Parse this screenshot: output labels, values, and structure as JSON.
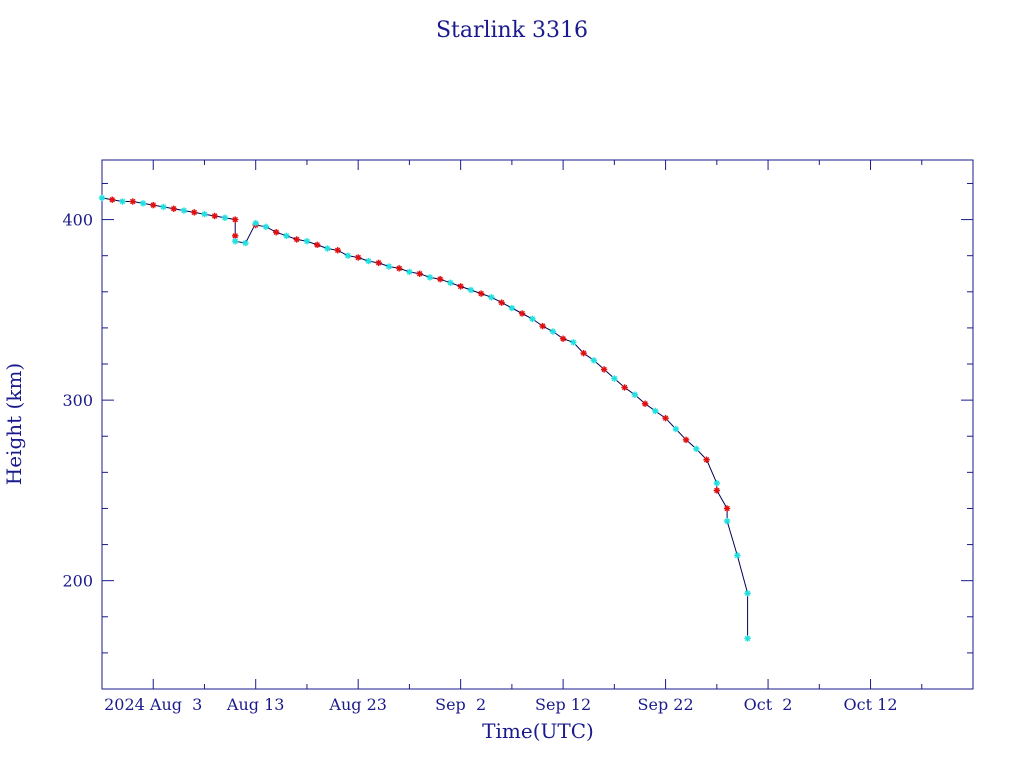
{
  "chart_data": {
    "type": "scatter",
    "title": "Starlink 3316",
    "xlabel": "Time(UTC)",
    "ylabel": "Height (km)",
    "x_tick_labels": [
      "2024 Aug  3",
      "Aug 13",
      "Aug 23",
      "Sep  2",
      "Sep 12",
      "Sep 22",
      "Oct  2",
      "Oct 12"
    ],
    "y_ticks": [
      200,
      300,
      400
    ],
    "xlim": [
      "2024-07-29",
      "2024-10-22"
    ],
    "ylim": [
      140,
      433
    ],
    "grid": false,
    "colors": {
      "axis": "#1a1a8c",
      "line": "#000055",
      "marker_a": "#e01010",
      "marker_b": "#20e0e0"
    },
    "series": [
      {
        "marker": "red-asterisk",
        "x": [
          "2024-07-30",
          "2024-08-01",
          "2024-08-03",
          "2024-08-05",
          "2024-08-07",
          "2024-08-09",
          "2024-08-11",
          "2024-08-11",
          "2024-08-13",
          "2024-08-15",
          "2024-08-17",
          "2024-08-19",
          "2024-08-21",
          "2024-08-23",
          "2024-08-25",
          "2024-08-27",
          "2024-08-29",
          "2024-08-31",
          "2024-09-02",
          "2024-09-04",
          "2024-09-06",
          "2024-09-08",
          "2024-09-10",
          "2024-09-12",
          "2024-09-14",
          "2024-09-16",
          "2024-09-18",
          "2024-09-20",
          "2024-09-22",
          "2024-09-24",
          "2024-09-26",
          "2024-09-27",
          "2024-09-28"
        ],
        "y": [
          411,
          410,
          408,
          406,
          404,
          402,
          400,
          391,
          397,
          393,
          389,
          386,
          383,
          379,
          376,
          373,
          370,
          367,
          363,
          359,
          354,
          348,
          341,
          334,
          326,
          317,
          307,
          298,
          290,
          278,
          267,
          250,
          240
        ]
      },
      {
        "marker": "cyan-asterisk",
        "x": [
          "2024-07-29",
          "2024-07-31",
          "2024-08-02",
          "2024-08-04",
          "2024-08-06",
          "2024-08-08",
          "2024-08-10",
          "2024-08-11",
          "2024-08-12",
          "2024-08-13",
          "2024-08-14",
          "2024-08-16",
          "2024-08-18",
          "2024-08-20",
          "2024-08-22",
          "2024-08-24",
          "2024-08-26",
          "2024-08-28",
          "2024-08-30",
          "2024-09-01",
          "2024-09-03",
          "2024-09-05",
          "2024-09-07",
          "2024-09-09",
          "2024-09-11",
          "2024-09-13",
          "2024-09-15",
          "2024-09-17",
          "2024-09-19",
          "2024-09-21",
          "2024-09-23",
          "2024-09-25",
          "2024-09-27",
          "2024-09-28",
          "2024-09-29",
          "2024-09-30",
          "2024-09-30"
        ],
        "y": [
          412,
          410,
          409,
          407,
          405,
          403,
          401,
          388,
          387,
          398,
          396,
          391,
          388,
          384,
          380,
          377,
          374,
          371,
          368,
          365,
          361,
          357,
          351,
          345,
          338,
          332,
          322,
          312,
          303,
          294,
          284,
          273,
          254,
          233,
          214,
          193,
          168
        ]
      }
    ]
  }
}
